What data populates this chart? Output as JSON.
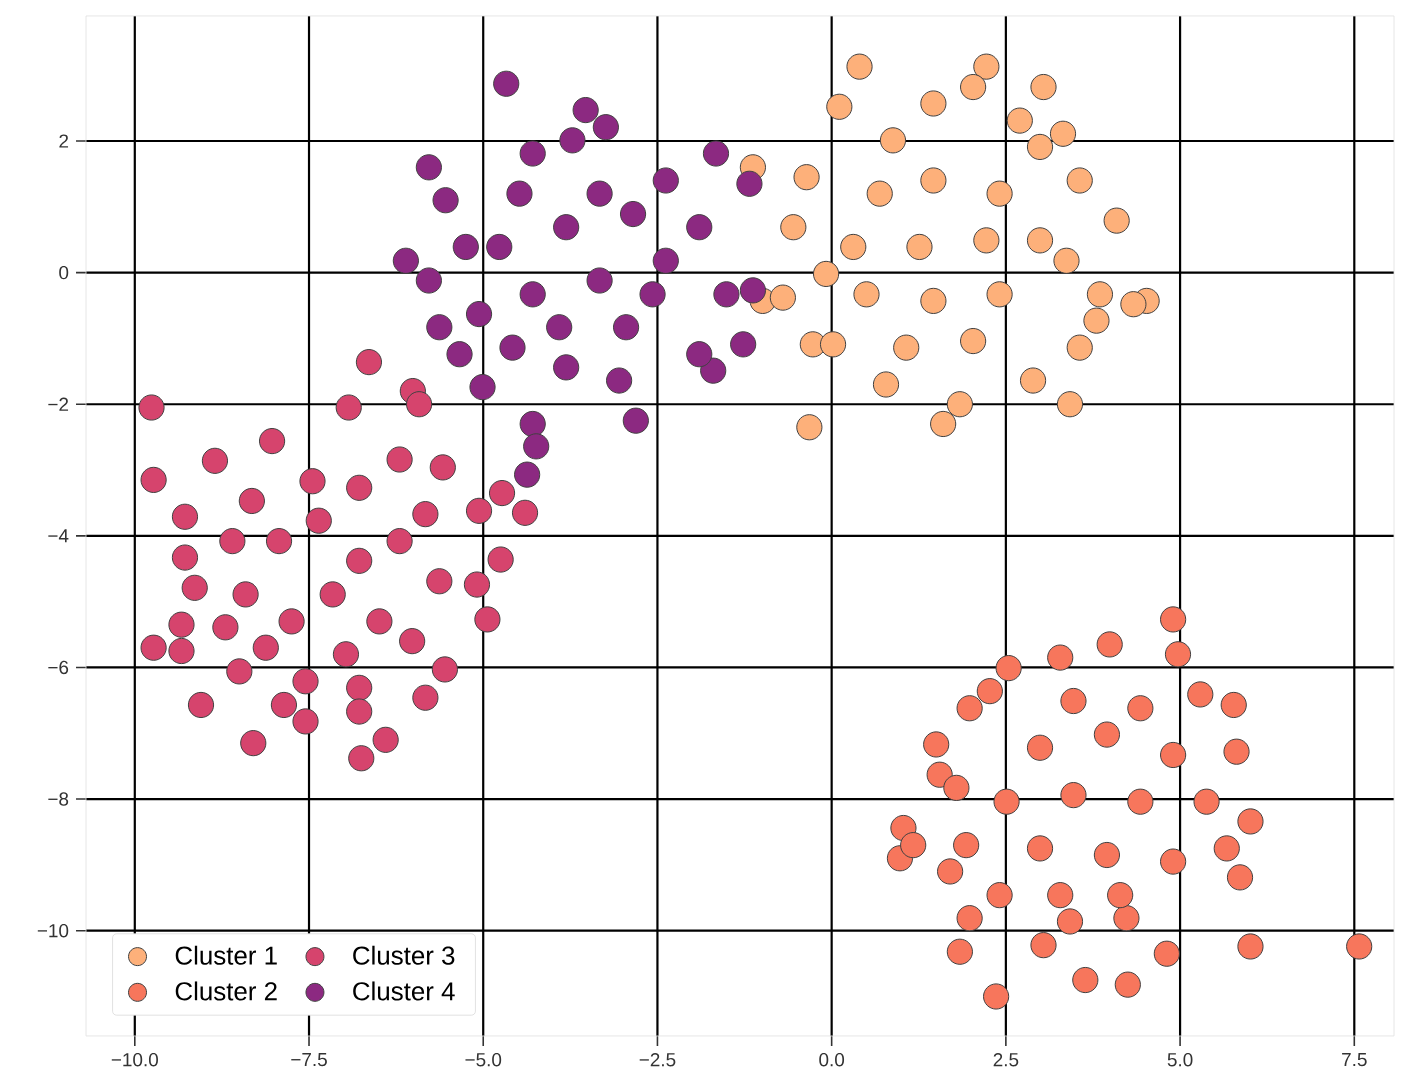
{
  "chart_data": {
    "type": "scatter",
    "xlim": [
      -10.7,
      8.07
    ],
    "ylim": [
      -11.6,
      3.9
    ],
    "xticks": [
      {
        "value": -10,
        "label": "−10.0"
      },
      {
        "value": -7.5,
        "label": "−7.5"
      },
      {
        "value": -5,
        "label": "−5.0"
      },
      {
        "value": -2.5,
        "label": "−2.5"
      },
      {
        "value": 0,
        "label": "0.0"
      },
      {
        "value": 2.5,
        "label": "2.5"
      },
      {
        "value": 5,
        "label": "5.0"
      },
      {
        "value": 7.5,
        "label": "7.5"
      }
    ],
    "yticks": [
      {
        "value": -10,
        "label": "−10"
      },
      {
        "value": -8,
        "label": "−8"
      },
      {
        "value": -6,
        "label": "−6"
      },
      {
        "value": -4,
        "label": "−4"
      },
      {
        "value": -2,
        "label": "−2"
      },
      {
        "value": 0,
        "label": "0"
      },
      {
        "value": 2,
        "label": "2"
      }
    ],
    "grid": true,
    "legend": "bottom left",
    "marker": "circle",
    "series": [
      {
        "name": "Cluster 1",
        "color": "#fdb07a",
        "x": [
          0.4,
          2.22,
          2.03,
          3.04,
          2.7,
          0.11,
          1.46,
          3.32,
          3.56,
          4.09,
          4.52,
          4.33,
          3.85,
          3.8,
          3.56,
          3.42,
          2.89,
          1.84,
          1.6,
          0.78,
          -0.32,
          -0.27,
          0.02,
          -0.99,
          -0.7,
          -0.55,
          -0.36,
          -1.13,
          0.69,
          1.46,
          2.41,
          0.31,
          1.26,
          2.22,
          2.99,
          0.5,
          1.46,
          2.41,
          1.07,
          2.03,
          2.99,
          0.88,
          3.37,
          -0.08
        ],
        "values": [
          3.13,
          3.13,
          2.82,
          2.82,
          2.31,
          2.52,
          2.57,
          2.11,
          1.4,
          0.79,
          -0.43,
          -0.48,
          -0.33,
          -0.73,
          -1.14,
          -2.0,
          -1.64,
          -2.0,
          -2.3,
          -1.7,
          -2.35,
          -1.09,
          -1.09,
          -0.43,
          -0.38,
          0.69,
          1.45,
          1.6,
          1.2,
          1.4,
          1.2,
          0.39,
          0.39,
          0.49,
          0.49,
          -0.33,
          -0.43,
          -0.33,
          -1.14,
          -1.04,
          1.91,
          2.01,
          0.18,
          -0.02
        ]
      },
      {
        "name": "Cluster 2",
        "color": "#f7765c",
        "x": [
          4.9,
          4.97,
          3.99,
          2.54,
          3.28,
          2.27,
          1.98,
          1.5,
          1.55,
          1.79,
          1.03,
          0.98,
          1.17,
          1.7,
          1.93,
          1.98,
          1.84,
          2.36,
          3.04,
          3.64,
          4.25,
          4.81,
          6.01,
          7.57,
          5.86,
          5.67,
          6.01,
          5.81,
          5.77,
          5.29,
          4.23,
          3.42,
          2.41,
          2.99,
          3.95,
          4.9,
          2.51,
          3.47,
          4.43,
          5.38,
          2.99,
          3.95,
          4.9,
          3.47,
          4.43,
          3.28,
          4.14
        ],
        "values": [
          -5.27,
          -5.8,
          -5.65,
          -6.01,
          -5.85,
          -6.36,
          -6.62,
          -7.17,
          -7.63,
          -7.83,
          -8.44,
          -8.9,
          -8.7,
          -9.1,
          -8.7,
          -9.81,
          -10.32,
          -11.0,
          -10.22,
          -10.75,
          -10.82,
          -10.35,
          -10.24,
          -10.24,
          -9.19,
          -8.75,
          -8.34,
          -7.28,
          -6.57,
          -6.41,
          -9.81,
          -9.86,
          -9.46,
          -7.22,
          -7.02,
          -7.33,
          -8.04,
          -7.94,
          -8.04,
          -8.04,
          -8.75,
          -8.85,
          -8.95,
          -6.51,
          -6.62,
          -9.46,
          -9.46
        ]
      },
      {
        "name": "Cluster 3",
        "color": "#d6446d",
        "x": [
          -9.76,
          -6.64,
          -6.01,
          -5.92,
          -6.93,
          -9.73,
          -9.73,
          -9.05,
          -8.3,
          -6.75,
          -6.4,
          -7.55,
          -7.86,
          -5.83,
          -5.55,
          -4.94,
          -5.09,
          -4.75,
          -4.4,
          -4.73,
          -5.06,
          -5.58,
          -6.2,
          -8.03,
          -8.85,
          -9.28,
          -9.28,
          -9.14,
          -9.33,
          -9.33,
          -8.5,
          -7.55,
          -6.78,
          -6.78,
          -7.93,
          -7.36,
          -6.78,
          -6.2,
          -7.16,
          -6.49,
          -7.75,
          -8.41,
          -8.6,
          -8.32,
          -7.45,
          -6.78,
          -5.83,
          -5.63,
          -6.02,
          -6.97,
          -8.12,
          -8.7
        ],
        "values": [
          -2.05,
          -1.36,
          -1.8,
          -2.0,
          -2.05,
          -3.15,
          -5.7,
          -6.57,
          -7.15,
          -7.38,
          -7.1,
          -6.82,
          -6.57,
          -6.46,
          -6.03,
          -5.27,
          -4.74,
          -4.36,
          -3.65,
          -3.35,
          -3.62,
          -2.96,
          -2.84,
          -2.56,
          -2.86,
          -3.71,
          -4.33,
          -4.79,
          -5.35,
          -5.75,
          -6.06,
          -6.21,
          -6.31,
          -6.67,
          -4.08,
          -3.77,
          -4.38,
          -4.08,
          -4.89,
          -5.3,
          -5.3,
          -4.89,
          -4.08,
          -3.47,
          -3.17,
          -3.27,
          -3.67,
          -4.69,
          -5.6,
          -5.8,
          -5.7,
          -5.39
        ]
      },
      {
        "name": "Cluster 4",
        "color": "#8c2981",
        "x": [
          -4.67,
          -3.53,
          -3.24,
          -5.78,
          -1.66,
          -1.18,
          -1.13,
          -1.27,
          -1.7,
          -2.81,
          -4.29,
          -4.24,
          -4.37,
          -5.01,
          -5.34,
          -5.63,
          -5.78,
          -6.11,
          -5.54,
          -4.29,
          -3.72,
          -2.38,
          -1.9,
          -1.51,
          -1.9,
          -3.05,
          -3.81,
          -4.77,
          -3.81,
          -2.85,
          -3.33,
          -4.29,
          -2.57,
          -5.06,
          -3.91,
          -2.95,
          -4.48,
          -3.33,
          -2.38,
          -5.25,
          -4.58
        ],
        "values": [
          2.87,
          2.47,
          2.21,
          1.6,
          1.81,
          1.35,
          -0.27,
          -1.09,
          -1.49,
          -2.25,
          -2.3,
          -2.64,
          -3.07,
          -1.74,
          -1.24,
          -0.83,
          -0.12,
          0.18,
          1.1,
          1.81,
          2.01,
          1.4,
          0.69,
          -0.33,
          -1.24,
          -1.64,
          -1.44,
          0.39,
          0.69,
          0.89,
          -0.12,
          -0.33,
          -0.33,
          -0.63,
          -0.83,
          -0.83,
          1.2,
          1.2,
          0.18,
          0.39,
          -1.14
        ]
      }
    ]
  }
}
